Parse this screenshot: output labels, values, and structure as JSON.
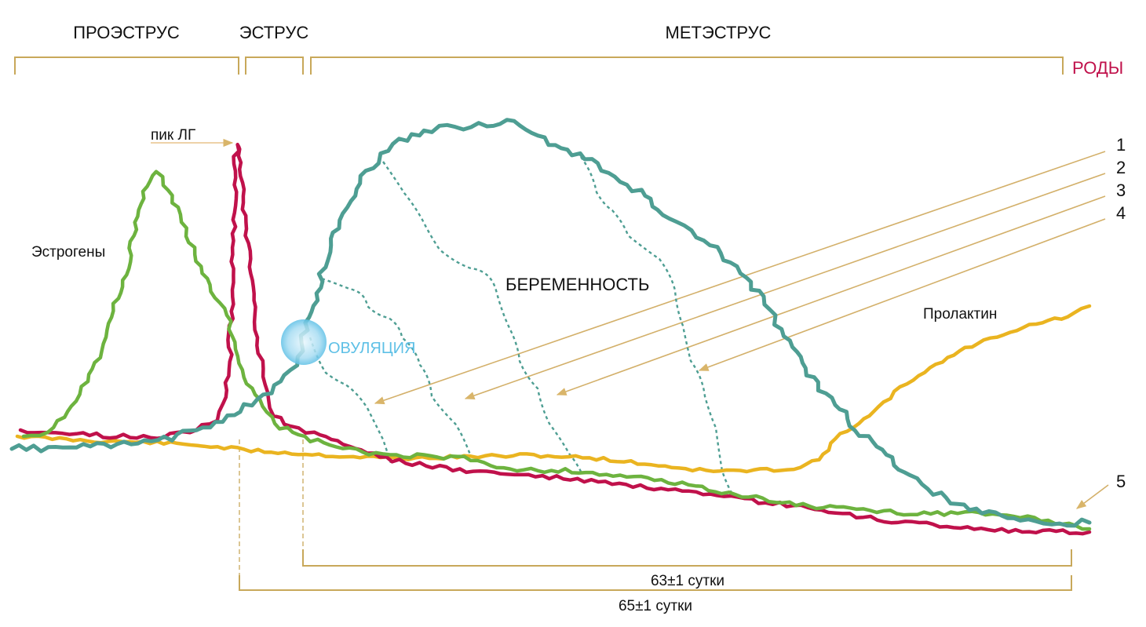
{
  "phases": {
    "proestrus": "ПРОЭСТРУС",
    "estrus": "ЭСТРУС",
    "metestrus": "МЕТЭСТРУС",
    "birth": "РОДЫ"
  },
  "labels": {
    "lh_peak": "пик ЛГ",
    "estrogens": "Эстрогены",
    "ovulation": "ОВУЛЯЦИЯ",
    "pregnancy": "БЕРЕМЕННОСТЬ",
    "prolactin": "Пролактин"
  },
  "numbers": [
    "1",
    "2",
    "3",
    "4",
    "5"
  ],
  "durations": {
    "short": "63±1 сутки",
    "long": "65±1 сутки"
  },
  "colors": {
    "progesterone": "#4e9e93",
    "lh": "#c0114b",
    "estrogens": "#6db33f",
    "prolactin": "#eab420",
    "ovulation": "#5ec0e6",
    "bracket": "#c8a85a",
    "arrow": "#b08a3e",
    "birth": "#c0114b"
  }
}
